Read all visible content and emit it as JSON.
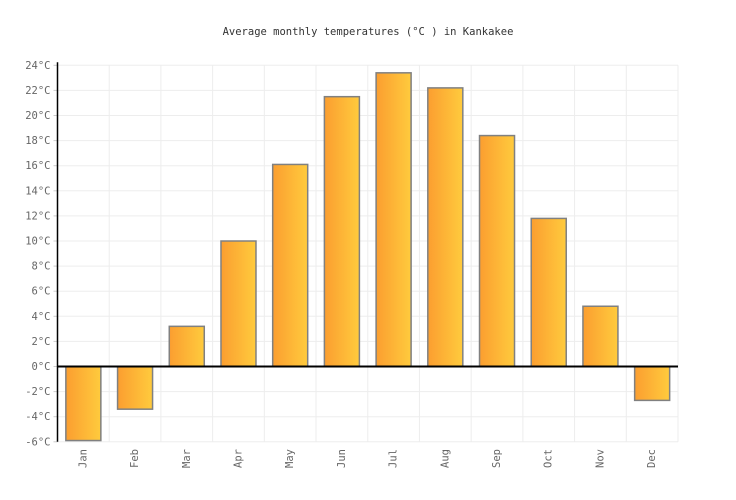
{
  "chart_data": {
    "type": "bar",
    "title": "Average monthly temperatures (°C ) in Kankakee",
    "categories": [
      "Jan",
      "Feb",
      "Mar",
      "Apr",
      "May",
      "Jun",
      "Jul",
      "Aug",
      "Sep",
      "Oct",
      "Nov",
      "Dec"
    ],
    "values": [
      -5.9,
      -3.4,
      3.2,
      10.0,
      16.1,
      21.5,
      23.4,
      22.2,
      18.4,
      11.8,
      4.8,
      -2.7
    ],
    "unit": "°C",
    "xlabel": "",
    "ylabel": "",
    "ylim": [
      -6,
      24
    ],
    "y_tick_step": 2,
    "y_tick_labels": [
      "24°C",
      "22°C",
      "20°C",
      "18°C",
      "16°C",
      "14°C",
      "12°C",
      "10°C",
      "8°C",
      "6°C",
      "4°C",
      "2°C",
      "0°C",
      "-2°C",
      "-4°C",
      "-6°C"
    ],
    "grid": true,
    "legend": "none",
    "colors": {
      "background": "#FFFFFF",
      "bar_gradient_left": "#FB9E30",
      "bar_gradient_right": "#FFCB3D",
      "bar_border": "#808080",
      "grid_line": "#EDEDED",
      "minor_tick": "#CCCCCC",
      "axis_line": "#000000",
      "zero_line": "#000000",
      "tick_label": "#666666",
      "month_label": "#666666",
      "title": "#333333"
    }
  }
}
